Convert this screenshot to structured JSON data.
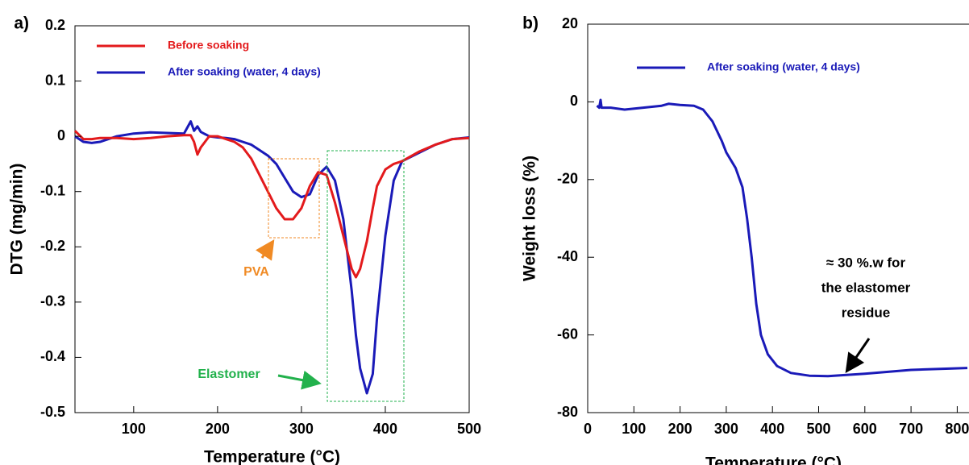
{
  "chart_data": [
    {
      "type": "line",
      "panel_label": "a)",
      "xlabel": "Temperature (°C)",
      "ylabel": "DTG (mg/min)",
      "x": [
        30,
        40,
        50,
        60,
        80,
        100,
        120,
        140,
        160,
        168,
        172,
        176,
        180,
        190,
        200,
        210,
        220,
        230,
        240,
        250,
        260,
        270,
        280,
        290,
        300,
        310,
        320,
        330,
        340,
        350,
        360,
        365,
        370,
        378,
        385,
        390,
        400,
        410,
        420,
        440,
        460,
        480,
        500
      ],
      "series": [
        {
          "name": "Before soaking",
          "color": "#e31a1c",
          "values": [
            0.01,
            -0.005,
            -0.005,
            -0.003,
            -0.003,
            -0.005,
            -0.003,
            0,
            0.002,
            0.002,
            -0.01,
            -0.033,
            -0.02,
            0,
            0,
            -0.005,
            -0.01,
            -0.02,
            -0.04,
            -0.07,
            -0.1,
            -0.13,
            -0.15,
            -0.15,
            -0.13,
            -0.09,
            -0.065,
            -0.07,
            -0.12,
            -0.18,
            -0.24,
            -0.255,
            -0.24,
            -0.19,
            -0.13,
            -0.09,
            -0.06,
            -0.05,
            -0.045,
            -0.028,
            -0.015,
            -0.005,
            -0.003
          ]
        },
        {
          "name": "After soaking (water, 4 days)",
          "color": "#1a1ab8",
          "values": [
            0,
            -0.01,
            -0.012,
            -0.01,
            0,
            0.005,
            0.007,
            0.006,
            0.005,
            0.027,
            0.01,
            0.018,
            0.008,
            0,
            -0.002,
            -0.003,
            -0.005,
            -0.01,
            -0.015,
            -0.025,
            -0.035,
            -0.05,
            -0.075,
            -0.1,
            -0.11,
            -0.105,
            -0.07,
            -0.055,
            -0.08,
            -0.15,
            -0.28,
            -0.36,
            -0.42,
            -0.465,
            -0.43,
            -0.33,
            -0.18,
            -0.08,
            -0.045,
            -0.03,
            -0.015,
            -0.005,
            -0.002
          ]
        }
      ],
      "xlim": [
        30,
        500
      ],
      "xticks": [
        100,
        200,
        300,
        400,
        500
      ],
      "ylim": [
        -0.5,
        0.2
      ],
      "yticks": [
        0.2,
        0.1,
        0,
        -0.1,
        -0.2,
        -0.3,
        -0.4,
        -0.5
      ],
      "annotations": [
        "PVA",
        "Elastomer"
      ]
    },
    {
      "type": "line",
      "panel_label": "b)",
      "xlabel": "Temperature (°C)",
      "ylabel": "Weight loss (%)",
      "x": [
        20,
        25,
        28,
        30,
        50,
        80,
        120,
        160,
        175,
        200,
        230,
        250,
        270,
        290,
        300,
        320,
        335,
        345,
        355,
        365,
        375,
        390,
        410,
        440,
        480,
        520,
        600,
        700,
        822
      ],
      "series": [
        {
          "name": "After soaking (water, 4 days)",
          "color": "#1a1ab8",
          "values": [
            -1,
            -1.5,
            0.5,
            -1.5,
            -1.5,
            -2,
            -1.5,
            -1,
            -0.5,
            -0.8,
            -1,
            -2,
            -5,
            -10,
            -13,
            -17,
            -22,
            -30,
            -40,
            -52,
            -60,
            -65,
            -68,
            -69.8,
            -70.5,
            -70.6,
            -70,
            -69,
            -68.5
          ]
        }
      ],
      "xlim": [
        0,
        822
      ],
      "xticks": [
        0,
        100,
        200,
        300,
        400,
        500,
        600,
        700,
        800
      ],
      "ylim": [
        -80,
        20
      ],
      "yticks": [
        20,
        0,
        -20,
        -40,
        -60,
        -80
      ],
      "annotations": [
        "≈ 30 %.w for",
        "the elastomer",
        "residue"
      ]
    }
  ]
}
